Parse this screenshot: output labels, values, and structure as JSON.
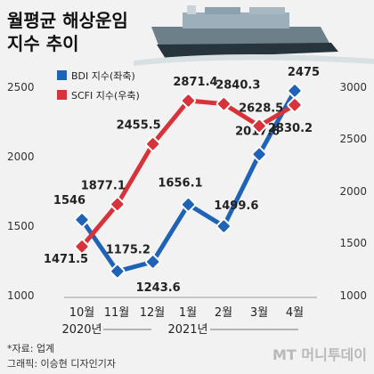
{
  "title": [
    "월평균 해상운임",
    "지수 추이"
  ],
  "legend": [
    {
      "label": "BDI 지수(좌축)",
      "color": "#1f63b7"
    },
    {
      "label": "SCFI 지수(우축)",
      "color": "#d6333a"
    }
  ],
  "left_ticks": [
    "2500",
    "2000",
    "1500",
    "1000"
  ],
  "right_ticks": [
    "3000",
    "2500",
    "2000",
    "1500",
    "1000"
  ],
  "x_ticks": [
    "10월",
    "11월",
    "12월",
    "1월",
    "2월",
    "3월",
    "4월"
  ],
  "year_labels": [
    "2020년",
    "2021년"
  ],
  "source": "*자료: 업계",
  "credit": "그래픽: 이승현 디자인기자",
  "brand": "MT 머니투데이",
  "chart_data": {
    "type": "line",
    "categories": [
      "10월",
      "11월",
      "12월",
      "1월",
      "2월",
      "3월",
      "4월"
    ],
    "series": [
      {
        "name": "BDI 지수(좌축)",
        "axis": "left",
        "color": "#1f63b7",
        "values": [
          1546,
          1175.2,
          1243.6,
          1656.1,
          1499.6,
          2017.6,
          2475
        ],
        "labels": [
          "1546",
          "1175.2",
          "1243.6",
          "1656.1",
          "1499.6",
          "2017.6",
          "2475"
        ]
      },
      {
        "name": "SCFI 지수(우축)",
        "axis": "right",
        "color": "#d6333a",
        "values": [
          1471.5,
          1877.1,
          2455.5,
          2871.4,
          2840.3,
          2628.5,
          2830.2
        ],
        "labels": [
          "1471.5",
          "1877.1",
          "2455.5",
          "2871.4",
          "2840.3",
          "2628.5",
          "2830.2"
        ]
      }
    ],
    "ylim_left": [
      1000,
      2500
    ],
    "ylim_right": [
      1000,
      3000
    ]
  }
}
